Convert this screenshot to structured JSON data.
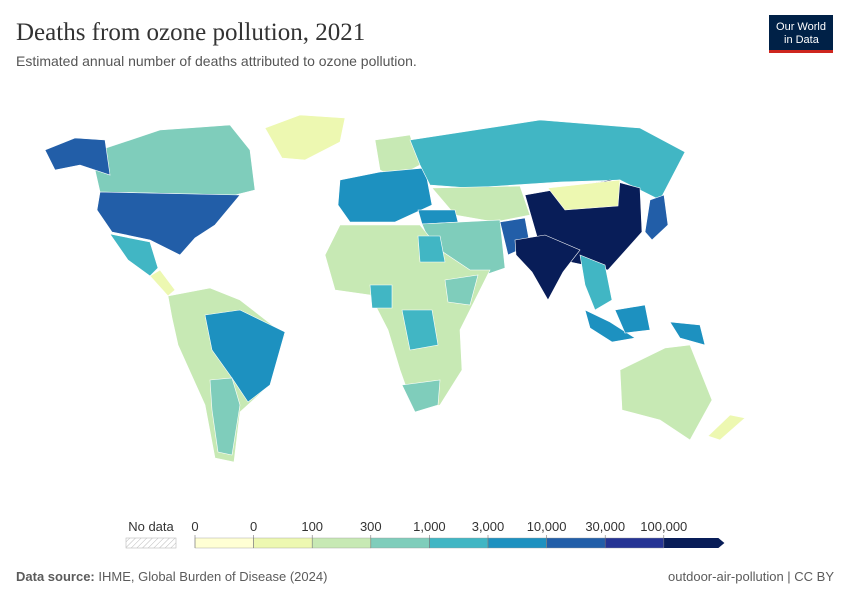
{
  "header": {
    "title": "Deaths from ozone pollution, 2021",
    "subtitle": "Estimated annual number of deaths attributed to ozone pollution.",
    "logo": [
      "Our World",
      "in Data"
    ]
  },
  "legend": {
    "no_data": "No data",
    "ticks": [
      0,
      0,
      100,
      300,
      {
        "value": 1000,
        "label": "1,000"
      },
      {
        "value": 3000,
        "label": "3,000"
      },
      {
        "value": 10000,
        "label": "10,000"
      },
      {
        "value": 30000,
        "label": "30,000"
      },
      {
        "value": 100000,
        "label": "100,000"
      }
    ],
    "colors": [
      "#ffffd4",
      "#edf8b1",
      "#c7e9b4",
      "#7fcdbb",
      "#41b6c4",
      "#1d91c0",
      "#225ea8",
      "#253494",
      "#081d58"
    ]
  },
  "footer": {
    "source_label": "Data source:",
    "source": "IHME, Global Burden of Disease (2024)",
    "slug": "outdoor-air-pollution | CC BY"
  }
}
